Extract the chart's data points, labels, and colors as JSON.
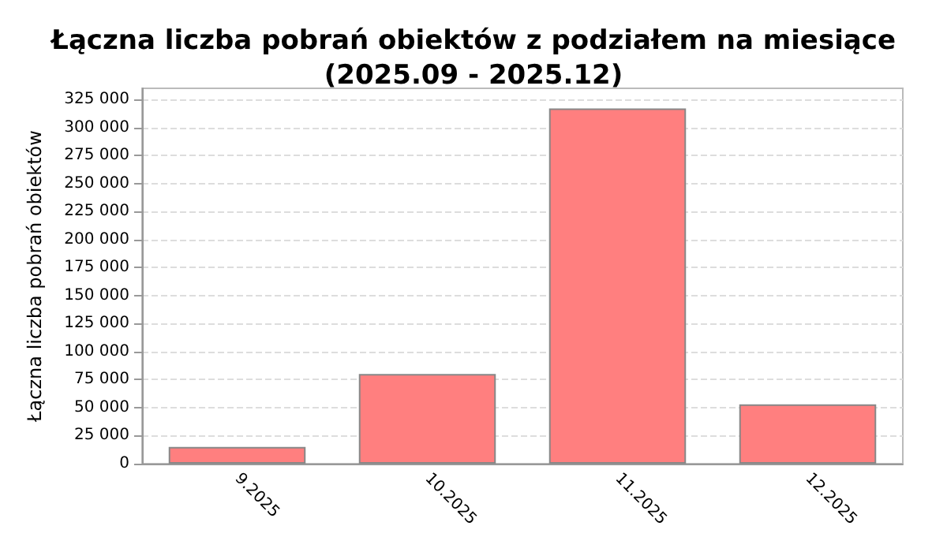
{
  "chart_data": {
    "type": "bar",
    "title": "Łączna liczba pobrań obiektów z podziałem na miesiące\n(2025.09 - 2025.12)",
    "ylabel": "Łączna liczba pobrań obiektów",
    "categories": [
      "9.2025",
      "10.2025",
      "11.2025",
      "12.2025"
    ],
    "values": [
      15000,
      80000,
      317000,
      53000
    ],
    "color": "#ff7f7f",
    "ylim": [
      0,
      335000
    ],
    "yticks": [
      0,
      {
        "value": 25000,
        "label": "25 000"
      },
      {
        "value": 50000,
        "label": "50 000"
      },
      {
        "value": 75000,
        "label": "75 000"
      },
      {
        "value": 100000,
        "label": "100 000"
      },
      {
        "value": 125000,
        "label": "125 000"
      },
      {
        "value": 150000,
        "label": "150 000"
      },
      {
        "value": 175000,
        "label": "175 000"
      },
      {
        "value": 200000,
        "label": "200 000"
      },
      {
        "value": 225000,
        "label": "225 000"
      },
      {
        "value": 250000,
        "label": "250 000"
      },
      {
        "value": 275000,
        "label": "275 000"
      },
      {
        "value": 300000,
        "label": "300 000"
      },
      {
        "value": 325000,
        "label": "325 000"
      }
    ],
    "grid": "y"
  }
}
